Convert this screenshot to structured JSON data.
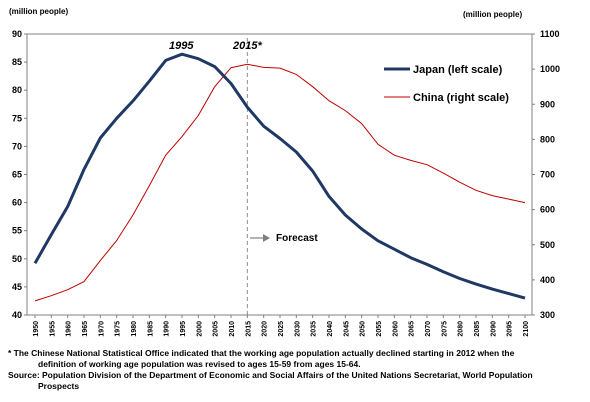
{
  "chart_data": {
    "type": "line",
    "y_left_unit": "(million people)",
    "y_right_unit": "(million people)",
    "y_left_lim": [
      40,
      90
    ],
    "y_left_ticks": [
      40,
      45,
      50,
      55,
      60,
      65,
      70,
      75,
      80,
      85,
      90
    ],
    "y_right_lim": [
      300,
      1100
    ],
    "y_right_ticks": [
      300,
      400,
      500,
      600,
      700,
      800,
      900,
      1000,
      1100
    ],
    "x": [
      1950,
      1955,
      1960,
      1965,
      1970,
      1975,
      1980,
      1985,
      1990,
      1995,
      2000,
      2005,
      2010,
      2015,
      2020,
      2025,
      2030,
      2035,
      2040,
      2045,
      2050,
      2055,
      2060,
      2065,
      2070,
      2075,
      2080,
      2085,
      2090,
      2095,
      2100
    ],
    "series": [
      {
        "name": "Japan (left scale)",
        "axis": "left",
        "color": "#1f3864",
        "values": [
          49.2,
          54.3,
          59.3,
          65.9,
          71.5,
          75.0,
          78.1,
          81.6,
          85.3,
          86.4,
          85.6,
          84.2,
          81.2,
          77.0,
          73.6,
          71.4,
          69.0,
          65.6,
          61.1,
          57.8,
          55.3,
          53.2,
          51.7,
          50.2,
          49.0,
          47.7,
          46.5,
          45.5,
          44.6,
          43.8,
          43.0
        ]
      },
      {
        "name": "China (right scale)",
        "axis": "right",
        "color": "#c00000",
        "values": [
          340,
          355,
          372,
          395,
          455,
          512,
          585,
          668,
          755,
          808,
          868,
          950,
          1004,
          1014,
          1005,
          1003,
          985,
          950,
          910,
          882,
          845,
          786,
          755,
          740,
          728,
          704,
          678,
          655,
          640,
          630,
          620
        ]
      }
    ],
    "annotations": [
      "1995",
      "2015*"
    ],
    "forecast_label": "Forecast",
    "forecast_start": 2015,
    "legend_position": "right"
  },
  "notes": {
    "note_line1": "* The Chinese National Statistical Office indicated that the working age population actually declined starting in 2012 when the",
    "note_line2": "definition of working age population was revised to ages 15-59 from ages 15-64.",
    "source_line1": "Source: Population Division of the Department of Economic and Social Affairs of the United Nations Secretariat, World Population",
    "source_line2": "Prospects"
  }
}
